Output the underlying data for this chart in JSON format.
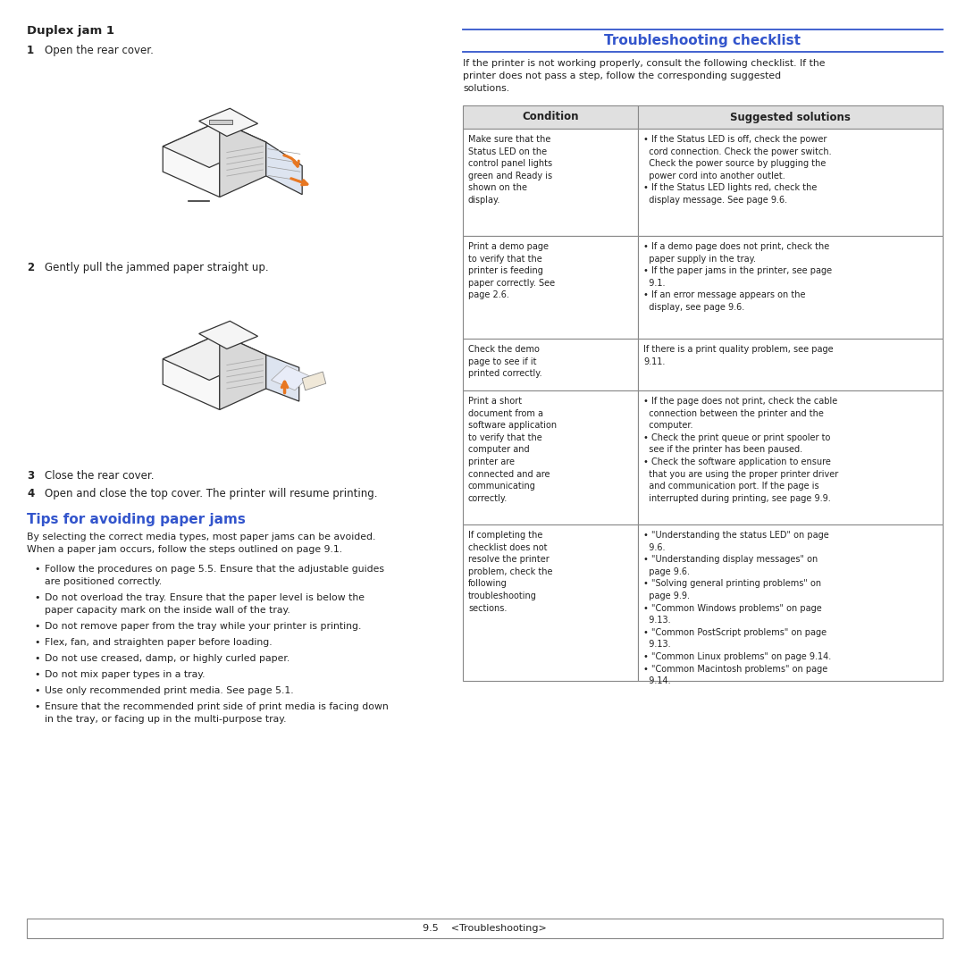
{
  "background_color": "#ffffff",
  "blue_color": "#3355cc",
  "orange_color": "#e87722",
  "black_color": "#222222",
  "gray_header": "#e0e0e0",
  "table_border": "#888888",
  "duplex_jam_title": "Duplex jam 1",
  "step1_text": "Open the rear cover.",
  "step2_text": "Gently pull the jammed paper straight up.",
  "step3_text": "Close the rear cover.",
  "step4_text": "Open and close the top cover. The printer will resume printing.",
  "tips_title": "Tips for avoiding paper jams",
  "tips_intro": "By selecting the correct media types, most paper jams can be avoided.\nWhen a paper jam occurs, follow the steps outlined on page 9.1.",
  "tips_bullets": [
    "Follow the procedures on page 5.5. Ensure that the adjustable guides\nare positioned correctly.",
    "Do not overload the tray. Ensure that the paper level is below the\npaper capacity mark on the inside wall of the tray.",
    "Do not remove paper from the tray while your printer is printing.",
    "Flex, fan, and straighten paper before loading.",
    "Do not use creased, damp, or highly curled paper.",
    "Do not mix paper types in a tray.",
    "Use only recommended print media. See page 5.1.",
    "Ensure that the recommended print side of print media is facing down\nin the tray, or facing up in the multi-purpose tray."
  ],
  "right_title": "Troubleshooting checklist",
  "right_intro": "If the printer is not working properly, consult the following checklist. If the\nprinter does not pass a step, follow the corresponding suggested\nsolutions.",
  "table_col1_header": "Condition",
  "table_col2_header": "Suggested solutions",
  "table_rows": [
    {
      "condition": "Make sure that the\nStatus LED on the\ncontrol panel lights\ngreen and Ready is\nshown on the\ndisplay.",
      "solutions": "• If the Status LED is off, check the power\n  cord connection. Check the power switch.\n  Check the power source by plugging the\n  power cord into another outlet.\n• If the Status LED lights red, check the\n  display message. See page 9.6."
    },
    {
      "condition": "Print a demo page\nto verify that the\nprinter is feeding\npaper correctly. See\npage 2.6.",
      "solutions": "• If a demo page does not print, check the\n  paper supply in the tray.\n• If the paper jams in the printer, see page\n  9.1.\n• If an error message appears on the\n  display, see page 9.6."
    },
    {
      "condition": "Check the demo\npage to see if it\nprinted correctly.",
      "solutions": "If there is a print quality problem, see page\n9.11."
    },
    {
      "condition": "Print a short\ndocument from a\nsoftware application\nto verify that the\ncomputer and\nprinter are\nconnected and are\ncommunicating\ncorrectly.",
      "solutions": "• If the page does not print, check the cable\n  connection between the printer and the\n  computer.\n• Check the print queue or print spooler to\n  see if the printer has been paused.\n• Check the software application to ensure\n  that you are using the proper printer driver\n  and communication port. If the page is\n  interrupted during printing, see page 9.9."
    },
    {
      "condition": "If completing the\nchecklist does not\nresolve the printer\nproblem, check the\nfollowing\ntroubleshooting\nsections.",
      "solutions": "• \"Understanding the status LED\" on page\n  9.6.\n• \"Understanding display messages\" on\n  page 9.6.\n• \"Solving general printing problems\" on\n  page 9.9.\n• \"Common Windows problems\" on page\n  9.13.\n• \"Common PostScript problems\" on page\n  9.13.\n• \"Common Linux problems\" on page 9.14.\n• \"Common Macintosh problems\" on page\n  9.14."
    }
  ],
  "footer_text": "9.5    <Troubleshooting>"
}
